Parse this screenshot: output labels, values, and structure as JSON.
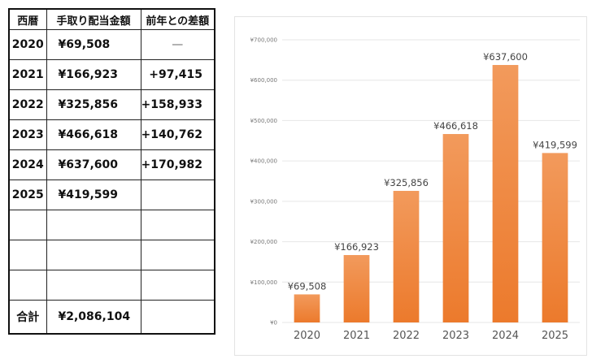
{
  "table": {
    "headers": [
      "西暦",
      "手取り配当金額",
      "前年との差額"
    ],
    "rows": [
      {
        "year": "2020",
        "amount": "¥69,508",
        "diff": "—"
      },
      {
        "year": "2021",
        "amount": "¥166,923",
        "diff": "+97,415"
      },
      {
        "year": "2022",
        "amount": "¥325,856",
        "diff": "+158,933"
      },
      {
        "year": "2023",
        "amount": "¥466,618",
        "diff": "+140,762"
      },
      {
        "year": "2024",
        "amount": "¥637,600",
        "diff": "+170,982"
      },
      {
        "year": "2025",
        "amount": "¥419,599",
        "diff": ""
      },
      {
        "year": "",
        "amount": "",
        "diff": ""
      },
      {
        "year": "",
        "amount": "",
        "diff": ""
      },
      {
        "year": "",
        "amount": "",
        "diff": ""
      }
    ],
    "total_label": "合計",
    "total_amount": "¥2,086,104"
  },
  "chart_data": {
    "type": "bar",
    "categories": [
      "2020",
      "2021",
      "2022",
      "2023",
      "2024",
      "2025"
    ],
    "values": [
      69508,
      166923,
      325856,
      466618,
      637600,
      419599
    ],
    "value_labels": [
      "¥69,508",
      "¥166,923",
      "¥325,856",
      "¥466,618",
      "¥637,600",
      "¥419,599"
    ],
    "y_ticks": [
      0,
      100000,
      200000,
      300000,
      400000,
      500000,
      600000,
      700000
    ],
    "y_tick_labels": [
      "¥0",
      "¥100,000",
      "¥200,000",
      "¥300,000",
      "¥400,000",
      "¥500,000",
      "¥600,000",
      "¥700,000"
    ],
    "ylim": [
      0,
      700000
    ],
    "grid": true,
    "bar_color_top": "#f29a5c",
    "bar_color_bottom": "#ec7a2c"
  }
}
